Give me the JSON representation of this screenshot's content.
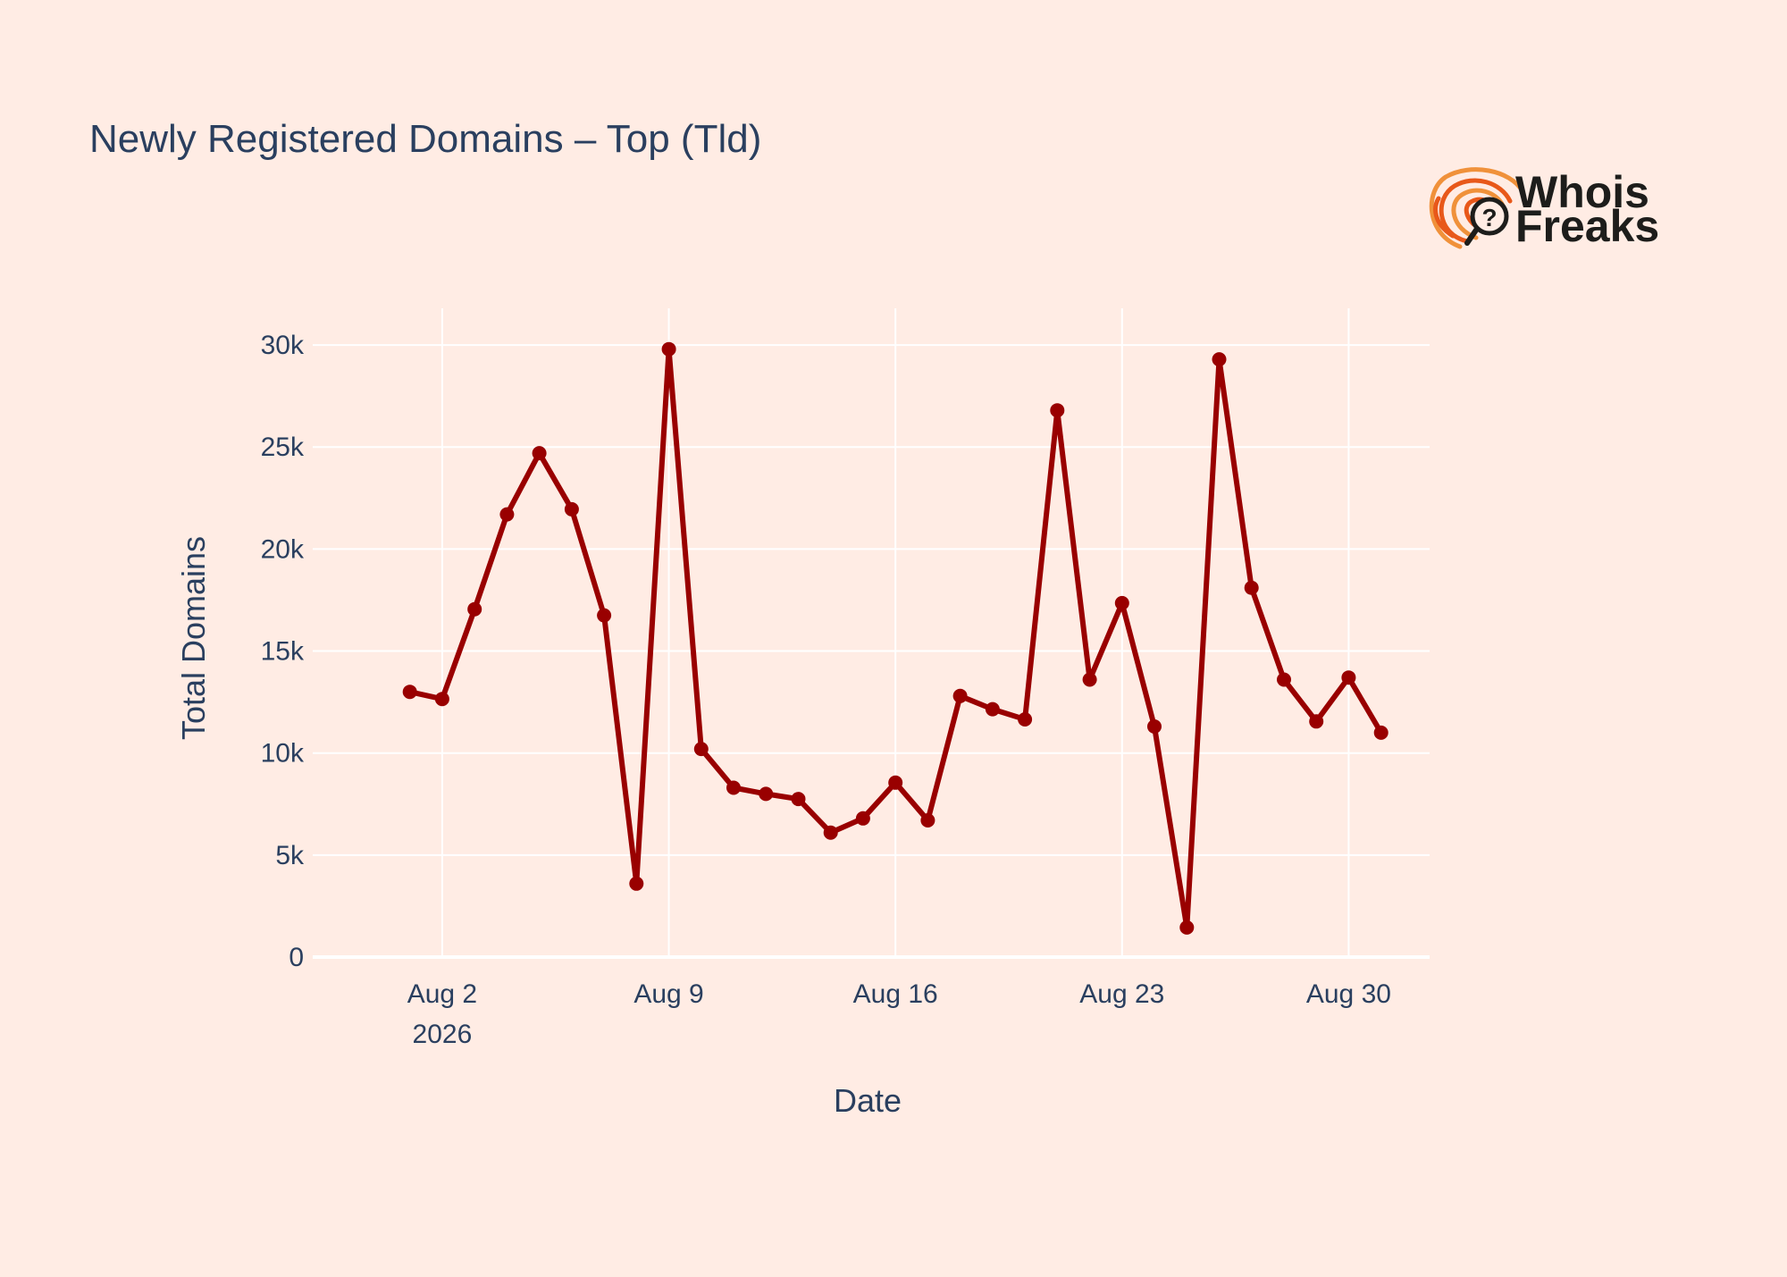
{
  "chart_data": {
    "type": "line",
    "title": "Newly Registered Domains – Top (Tld)",
    "xlabel": "Date",
    "ylabel": "Total Domains",
    "x_range": [
      "2026-07-29T00:00",
      "2026-09-01T12:00"
    ],
    "ylim": [
      0,
      31800
    ],
    "x_ticks": [
      {
        "date": "2026-08-02",
        "label": "Aug 2",
        "sublabel": "2026"
      },
      {
        "date": "2026-08-09",
        "label": "Aug 9"
      },
      {
        "date": "2026-08-16",
        "label": "Aug 16"
      },
      {
        "date": "2026-08-23",
        "label": "Aug 23"
      },
      {
        "date": "2026-08-30",
        "label": "Aug 30"
      }
    ],
    "y_ticks": [
      {
        "value": 0,
        "label": "0"
      },
      {
        "value": 5000,
        "label": "5k"
      },
      {
        "value": 10000,
        "label": "10k"
      },
      {
        "value": 15000,
        "label": "15k"
      },
      {
        "value": 20000,
        "label": "20k"
      },
      {
        "value": 25000,
        "label": "25k"
      },
      {
        "value": 30000,
        "label": "30k"
      }
    ],
    "grid": true,
    "line_color": "#990000",
    "background": "#ffece4",
    "series": [
      {
        "x": [
          "2026-08-01",
          "2026-08-02",
          "2026-08-03",
          "2026-08-04",
          "2026-08-05",
          "2026-08-06",
          "2026-08-07",
          "2026-08-08",
          "2026-08-09",
          "2026-08-10",
          "2026-08-11",
          "2026-08-12",
          "2026-08-13",
          "2026-08-14",
          "2026-08-15",
          "2026-08-16",
          "2026-08-17",
          "2026-08-18",
          "2026-08-19",
          "2026-08-20",
          "2026-08-21",
          "2026-08-22",
          "2026-08-23",
          "2026-08-24",
          "2026-08-25",
          "2026-08-26",
          "2026-08-27",
          "2026-08-28",
          "2026-08-29",
          "2026-08-30",
          "2026-08-31"
        ],
        "values": [
          13000,
          12650,
          17050,
          21700,
          24700,
          21950,
          16750,
          3600,
          29800,
          10200,
          8300,
          8000,
          7750,
          6100,
          6800,
          8550,
          6700,
          12800,
          12150,
          11650,
          26800,
          13600,
          17350,
          11300,
          1450,
          29300,
          18100,
          13600,
          11550,
          13700,
          11000
        ]
      }
    ]
  },
  "logo": {
    "line1": "Whois",
    "line2": "Freaks",
    "icon": "fingerprint-magnifier-icon",
    "colors": [
      "#e8581a",
      "#f0913a",
      "#1d1d1b"
    ]
  }
}
